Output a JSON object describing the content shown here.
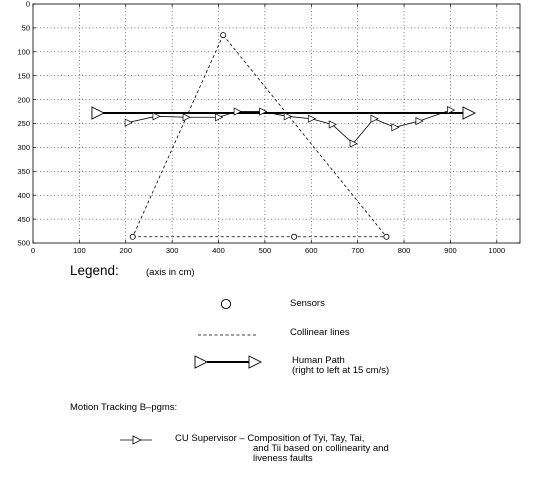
{
  "chart_data": {
    "type": "line",
    "title": "",
    "xlabel": "",
    "ylabel": "",
    "xlim": [
      0,
      1050
    ],
    "ylim": [
      0,
      500
    ],
    "y_inverted": true,
    "grid": true,
    "x_ticks": [
      0,
      100,
      200,
      300,
      400,
      500,
      600,
      700,
      800,
      900,
      1000
    ],
    "y_ticks": [
      0,
      50,
      100,
      150,
      200,
      250,
      300,
      350,
      400,
      450,
      500
    ],
    "series": [
      {
        "name": "Sensors",
        "style": "circle-markers",
        "points": [
          [
            410,
            65
          ],
          [
            215,
            487
          ],
          [
            563,
            487
          ],
          [
            762,
            487
          ]
        ]
      },
      {
        "name": "Collinear lines",
        "style": "dashed",
        "segments": [
          [
            [
              410,
              65
            ],
            [
              215,
              487
            ]
          ],
          [
            [
              410,
              65
            ],
            [
              762,
              487
            ]
          ],
          [
            [
              215,
              487
            ],
            [
              762,
              487
            ]
          ]
        ]
      },
      {
        "name": "Human Path",
        "style": "thick-line-triangle-ends",
        "points": [
          [
            140,
            228
          ],
          [
            940,
            228
          ]
        ]
      },
      {
        "name": "CU Supervisor",
        "style": "thin-line-triangle-markers",
        "points": [
          [
            205,
            248
          ],
          [
            265,
            235
          ],
          [
            330,
            237
          ],
          [
            400,
            237
          ],
          [
            440,
            225
          ],
          [
            495,
            225
          ],
          [
            548,
            235
          ],
          [
            600,
            240
          ],
          [
            645,
            252
          ],
          [
            690,
            292
          ],
          [
            735,
            240
          ],
          [
            780,
            258
          ],
          [
            832,
            245
          ],
          [
            900,
            222
          ]
        ]
      }
    ]
  },
  "legend": {
    "title": "Legend:",
    "note": "(axis in cm)",
    "sensors": "Sensors",
    "collinear": "Collinear lines",
    "human_path": "Human Path",
    "human_path_sub": "(right to left at 15 cm/s)",
    "motion_title": "Motion Tracking B–pgms:",
    "cu_line1": "CU Supervisor –  Composition of Tyi, Tay, Tai,",
    "cu_line2": "and Tii based on collinearity and",
    "cu_line3": "liveness faults"
  }
}
